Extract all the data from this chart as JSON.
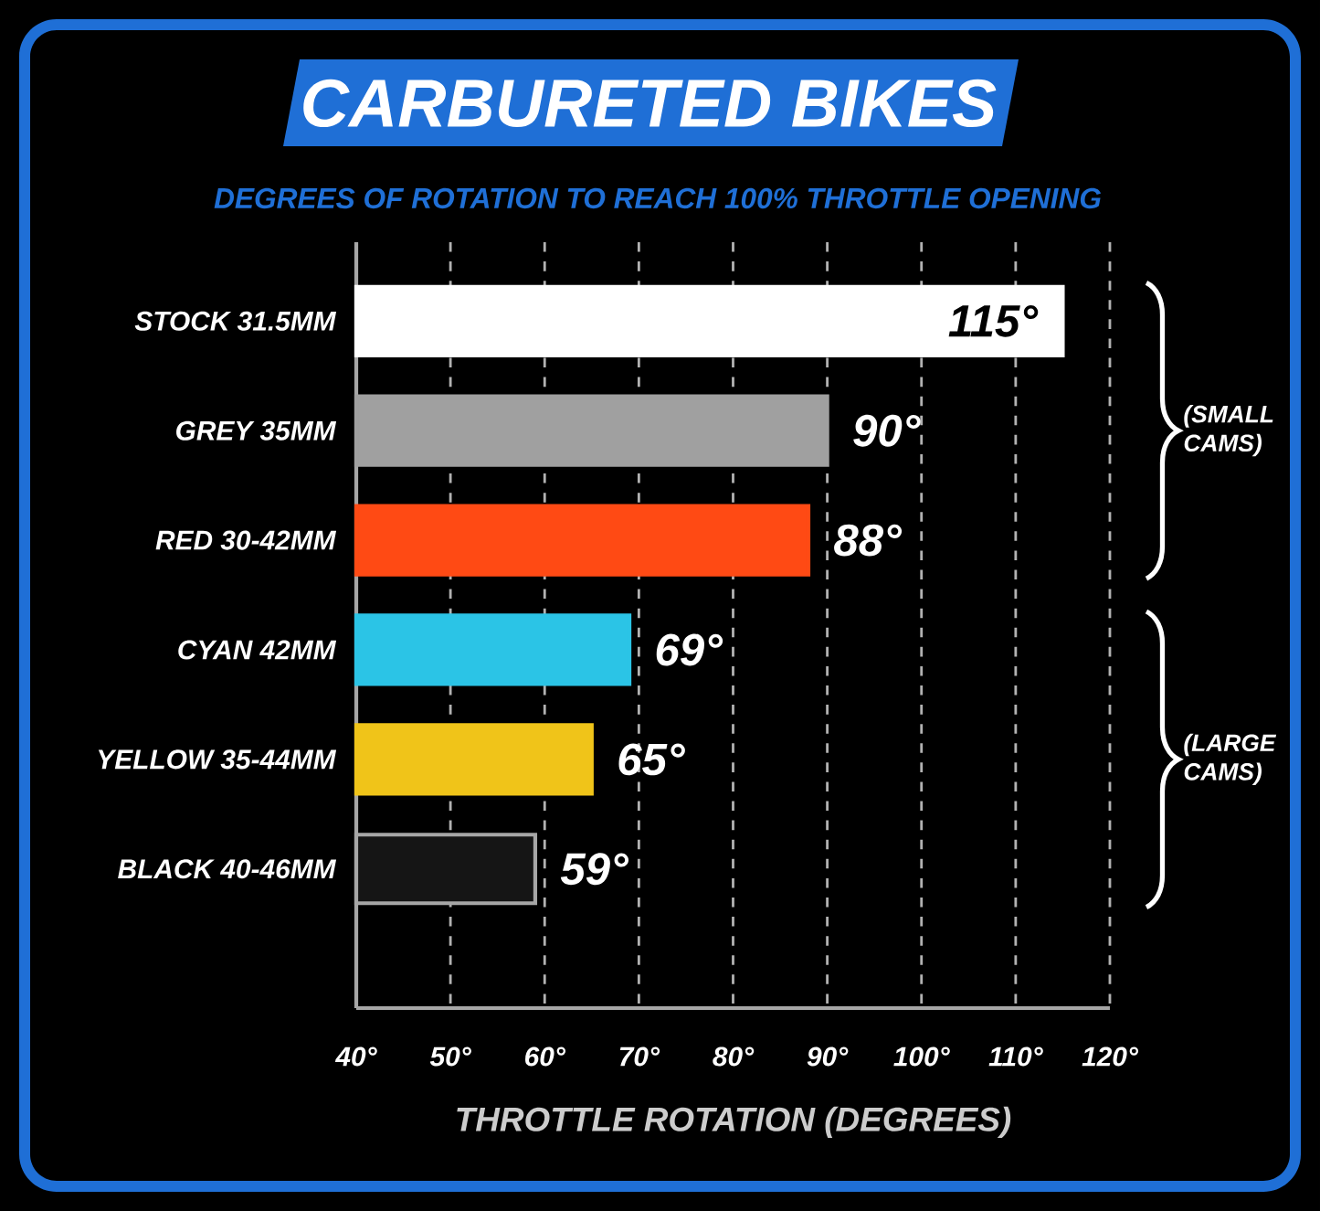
{
  "chart_data": {
    "type": "bar",
    "orientation": "horizontal",
    "title": "CARBURETED BIKES",
    "subtitle": "DEGREES OF ROTATION TO REACH 100% THROTTLE OPENING",
    "xlabel": "THROTTLE ROTATION (DEGREES)",
    "categories": [
      "STOCK 31.5MM",
      "GREY 35MM",
      "RED 30-42MM",
      "CYAN 42MM",
      "YELLOW 35-44MM",
      "BLACK 40-46MM"
    ],
    "values": [
      115,
      90,
      88,
      69,
      65,
      59
    ],
    "colors": [
      "#ffffff",
      "#a0a0a0",
      "#ff4a14",
      "#2bc4e6",
      "#f0c419",
      "#151515"
    ],
    "value_labels": [
      "115°",
      "90°",
      "88°",
      "69°",
      "65°",
      "59°"
    ],
    "xlim": [
      40,
      120
    ],
    "xticks": [
      {
        "value": 40,
        "label": "40°"
      },
      {
        "value": 50,
        "label": "50°"
      },
      {
        "value": 60,
        "label": "60°"
      },
      {
        "value": 70,
        "label": "70°"
      },
      {
        "value": 80,
        "label": "80°"
      },
      {
        "value": 90,
        "label": "90°"
      },
      {
        "value": 100,
        "label": "100°"
      },
      {
        "value": 110,
        "label": "110°"
      },
      {
        "value": 120,
        "label": "120°"
      }
    ],
    "grid": "x",
    "annotations": [
      "(SMALL CAMS)",
      "(LARGE CAMS)"
    ]
  }
}
